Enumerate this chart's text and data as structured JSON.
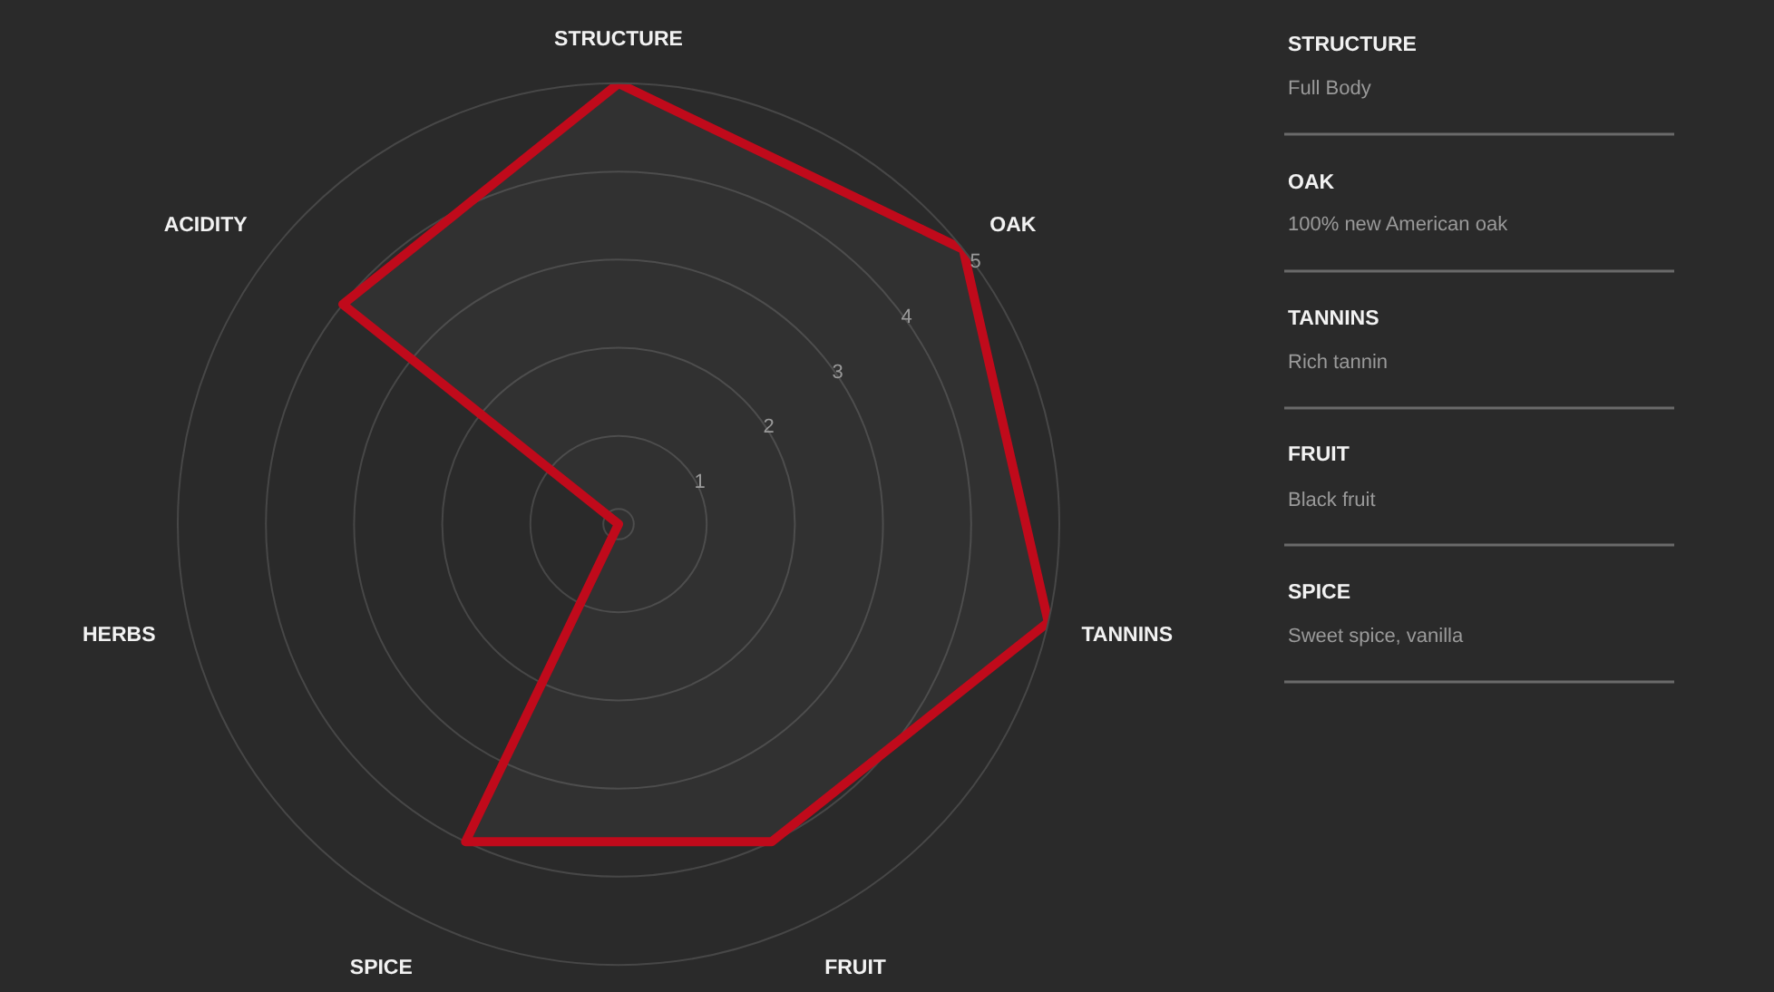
{
  "chart_data": {
    "type": "radar",
    "categories": [
      "STRUCTURE",
      "OAK",
      "TANNINS",
      "FRUIT",
      "SPICE",
      "HERBS",
      "ACIDITY"
    ],
    "series": [
      {
        "color": "#c00a1b",
        "values": [
          5,
          5,
          5,
          4,
          4,
          0,
          4
        ]
      }
    ],
    "ylim": [
      0,
      5
    ],
    "yticks": [
      1,
      2,
      3,
      4,
      5
    ],
    "grid": true,
    "line_style": "solid",
    "annotations": [
      "STRUCTURE",
      "Full Body",
      "OAK",
      "100% new American oak",
      "TANNINS",
      "Rich tannin",
      "FRUIT",
      "Black fruit",
      "SPICE",
      "Sweet spice, vanilla"
    ]
  }
}
